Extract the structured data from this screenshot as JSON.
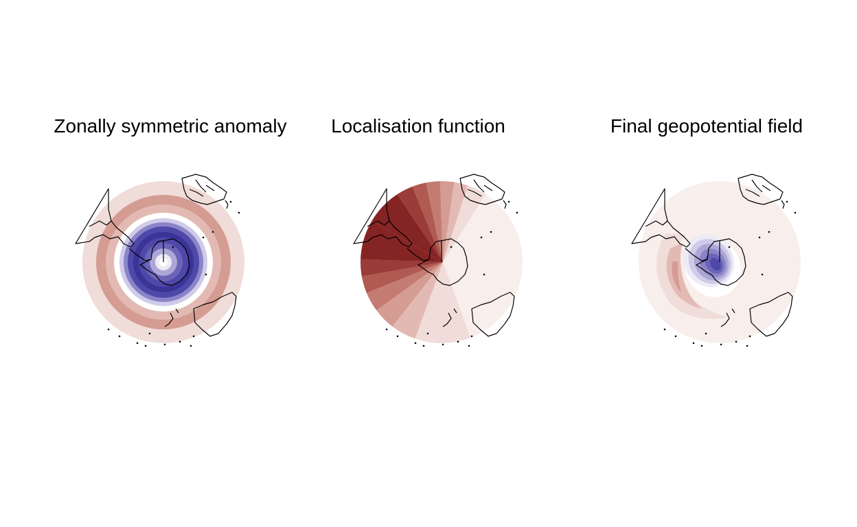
{
  "figure": {
    "panels": [
      {
        "id": "zonal",
        "title": "Zonally symmetric anomaly"
      },
      {
        "id": "local",
        "title": "Localisation function"
      },
      {
        "id": "final",
        "title": "Final geopotential field"
      }
    ]
  },
  "colors": {
    "red_scale": [
      "#f8eeec",
      "#f0dcd8",
      "#e3bab3",
      "#d49c92",
      "#c47c72",
      "#b05a52",
      "#9a3c38",
      "#852424"
    ],
    "blue_scale": [
      "#edebf5",
      "#cfcbe8",
      "#ada7d8",
      "#8b84c8",
      "#6b64b8",
      "#4e48a8",
      "#3a3499"
    ],
    "white": "#ffffff",
    "coastline": "#000000"
  }
}
